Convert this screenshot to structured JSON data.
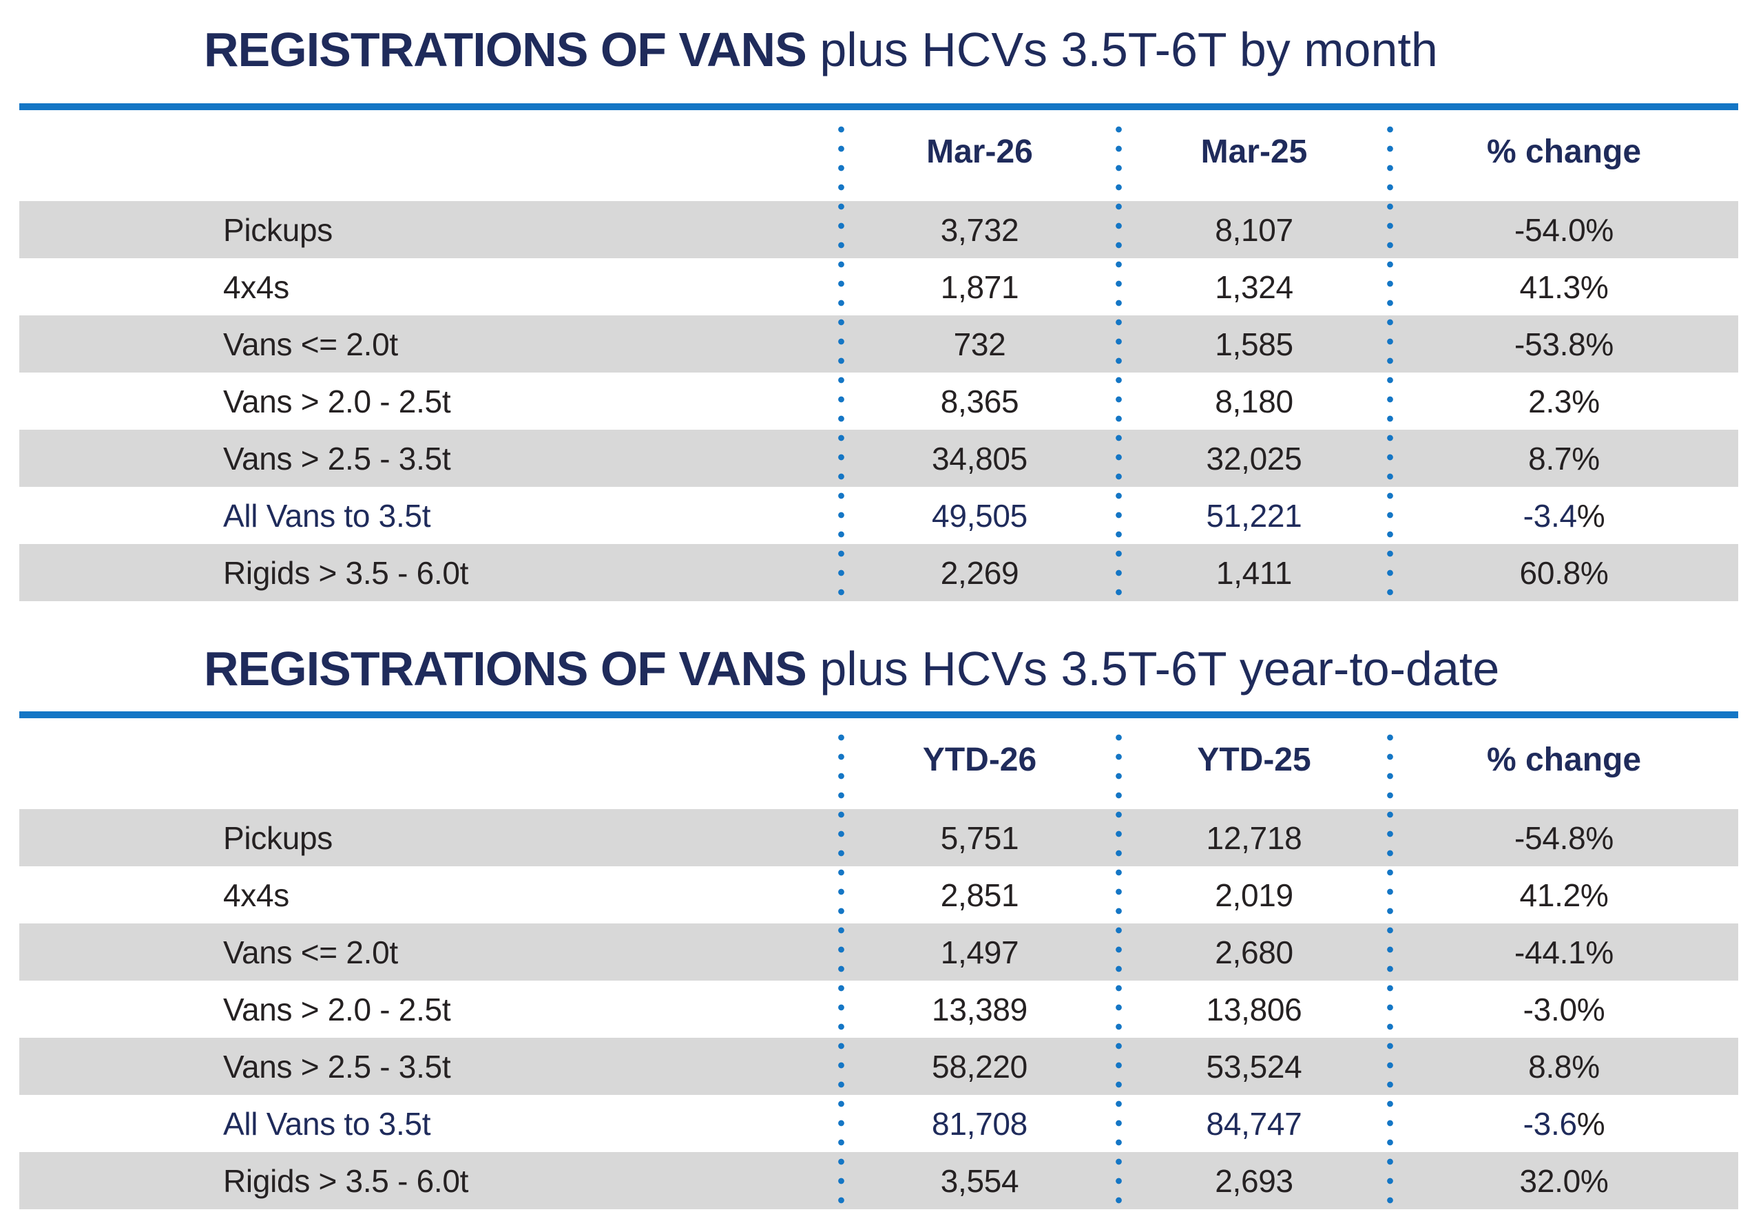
{
  "page": {
    "background": "#ffffff"
  },
  "colors": {
    "navy": "#1f2b5b",
    "accent_blue": "#1476c5",
    "row_shade": "#d8d8d8",
    "text_dark": "#252122"
  },
  "tables": [
    {
      "title_bold": "REGISTRATIONS OF VANS",
      "title_rest": "plus HCVs 3.5T-6T by month",
      "columns": [
        "Mar-26",
        "Mar-25",
        "% change"
      ],
      "rows": [
        {
          "label": "Pickups",
          "current": "3,732",
          "previous": "8,107",
          "change": "-54.0%",
          "shaded": true,
          "highlight": false
        },
        {
          "label": "4x4s",
          "current": "1,871",
          "previous": "1,324",
          "change": "41.3%",
          "shaded": false,
          "highlight": false
        },
        {
          "label": "Vans <= 2.0t",
          "current": "732",
          "previous": "1,585",
          "change": "-53.8%",
          "shaded": true,
          "highlight": false
        },
        {
          "label": "Vans > 2.0 - 2.5t",
          "current": "8,365",
          "previous": "8,180",
          "change": "2.3%",
          "shaded": false,
          "highlight": false
        },
        {
          "label": "Vans > 2.5 - 3.5t",
          "current": "34,805",
          "previous": "32,025",
          "change": "8.7%",
          "shaded": true,
          "highlight": false
        },
        {
          "label": "All Vans to 3.5t",
          "current": "49,505",
          "previous": "51,221",
          "change": "-3.4%",
          "shaded": false,
          "highlight": true
        },
        {
          "label": "Rigids > 3.5 - 6.0t",
          "current": "2,269",
          "previous": "1,411",
          "change": "60.8%",
          "shaded": true,
          "highlight": false
        }
      ]
    },
    {
      "title_bold": "REGISTRATIONS OF VANS",
      "title_rest": "plus HCVs 3.5T-6T year-to-date",
      "columns": [
        "YTD-26",
        "YTD-25",
        "% change"
      ],
      "rows": [
        {
          "label": "Pickups",
          "current": "5,751",
          "previous": "12,718",
          "change": "-54.8%",
          "shaded": true,
          "highlight": false
        },
        {
          "label": "4x4s",
          "current": "2,851",
          "previous": "2,019",
          "change": "41.2%",
          "shaded": false,
          "highlight": false
        },
        {
          "label": "Vans <= 2.0t",
          "current": "1,497",
          "previous": "2,680",
          "change": "-44.1%",
          "shaded": true,
          "highlight": false
        },
        {
          "label": "Vans > 2.0 - 2.5t",
          "current": "13,389",
          "previous": "13,806",
          "change": "-3.0%",
          "shaded": false,
          "highlight": false
        },
        {
          "label": "Vans > 2.5 - 3.5t",
          "current": "58,220",
          "previous": "53,524",
          "change": "8.8%",
          "shaded": true,
          "highlight": false
        },
        {
          "label": "All Vans to 3.5t",
          "current": "81,708",
          "previous": "84,747",
          "change": "-3.6%",
          "shaded": false,
          "highlight": true
        },
        {
          "label": "Rigids > 3.5 - 6.0t",
          "current": "3,554",
          "previous": "2,693",
          "change": "32.0%",
          "shaded": true,
          "highlight": false
        }
      ]
    }
  ]
}
